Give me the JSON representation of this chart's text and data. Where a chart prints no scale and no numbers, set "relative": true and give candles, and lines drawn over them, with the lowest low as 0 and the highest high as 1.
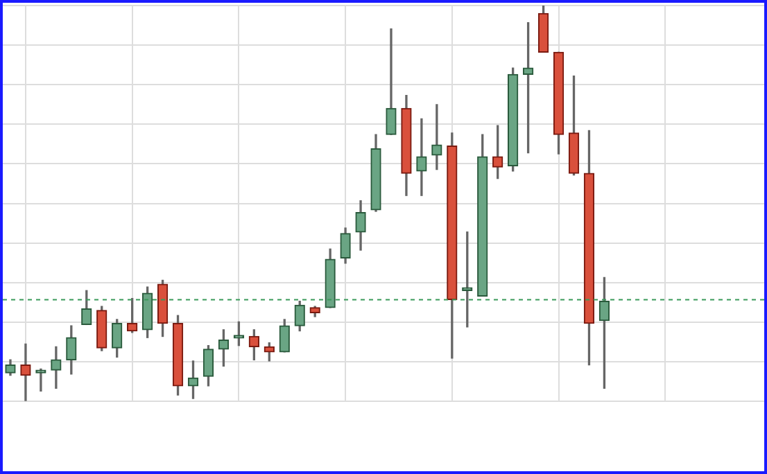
{
  "chart_data": {
    "type": "candlestick",
    "relative": true,
    "grid": true,
    "legend": false,
    "categories": [
      null,
      null,
      null,
      null,
      null,
      null,
      null,
      null,
      null,
      null,
      null,
      null,
      null,
      null,
      null,
      null,
      null,
      null,
      null,
      null,
      null,
      null,
      null,
      null,
      null,
      null,
      null,
      null,
      null,
      null,
      null,
      null,
      null,
      null,
      null,
      null,
      null,
      null,
      null,
      null,
      null,
      null,
      null,
      null,
      null,
      null,
      null,
      null,
      null,
      null
    ],
    "ohlc": [
      [
        0.072,
        0.105,
        0.066,
        0.092
      ],
      [
        0.092,
        0.145,
        0,
        0.066
      ],
      [
        0.072,
        0.082,
        0.026,
        0.079
      ],
      [
        0.079,
        0.138,
        0.033,
        0.105
      ],
      [
        0.105,
        0.191,
        0.069,
        0.161
      ],
      [
        0.194,
        0.28,
        0.194,
        0.234
      ],
      [
        0.23,
        0.24,
        0.128,
        0.135
      ],
      [
        0.135,
        0.207,
        0.112,
        0.197
      ],
      [
        0.197,
        0.26,
        0.174,
        0.178
      ],
      [
        0.181,
        0.289,
        0.161,
        0.273
      ],
      [
        0.296,
        0.306,
        0.164,
        0.197
      ],
      [
        0.197,
        0.217,
        0.016,
        0.039
      ],
      [
        0.039,
        0.102,
        0.007,
        0.059
      ],
      [
        0.063,
        0.141,
        0.039,
        0.132
      ],
      [
        0.132,
        0.181,
        0.089,
        0.155
      ],
      [
        0.16,
        0.201,
        0.141,
        0.164
      ],
      [
        0.164,
        0.181,
        0.105,
        0.138
      ],
      [
        0.138,
        0.148,
        0.102,
        0.125
      ],
      [
        0.125,
        0.207,
        0.125,
        0.191
      ],
      [
        0.191,
        0.253,
        0.178,
        0.243
      ],
      [
        0.237,
        0.24,
        0.214,
        0.224
      ],
      [
        0.237,
        0.385,
        0.237,
        0.359
      ],
      [
        0.362,
        0.438,
        0.349,
        0.424
      ],
      [
        0.428,
        0.507,
        0.382,
        0.477
      ],
      [
        0.484,
        0.674,
        0.48,
        0.638
      ],
      [
        0.674,
        0.941,
        0.674,
        0.74
      ],
      [
        0.74,
        0.773,
        0.52,
        0.576
      ],
      [
        0.582,
        0.714,
        0.52,
        0.618
      ],
      [
        0.622,
        0.75,
        0.586,
        0.648
      ],
      [
        0.645,
        0.678,
        0.109,
        0.257
      ],
      [
        0.28,
        0.428,
        0.188,
        0.28
      ],
      [
        0.266,
        0.674,
        0.266,
        0.618
      ],
      [
        0.618,
        0.697,
        0.563,
        0.592
      ],
      [
        0.595,
        0.842,
        0.582,
        0.826
      ],
      [
        0.826,
        0.957,
        0.628,
        0.842
      ],
      [
        0.98,
        1,
        0.882,
        0.882
      ],
      [
        0.882,
        0.882,
        0.625,
        0.674
      ],
      [
        0.678,
        0.822,
        0.572,
        0.576
      ],
      [
        0.576,
        0.684,
        0.092,
        0.197
      ],
      [
        0.204,
        0.313,
        0.033,
        0.253
      ],
      null,
      null,
      null,
      null,
      null,
      null,
      null,
      null,
      null,
      null
    ],
    "ref_lines": [
      {
        "axis": "y",
        "value": 0.257,
        "color": "#3a9a5a",
        "line_style": "dashed"
      }
    ]
  }
}
